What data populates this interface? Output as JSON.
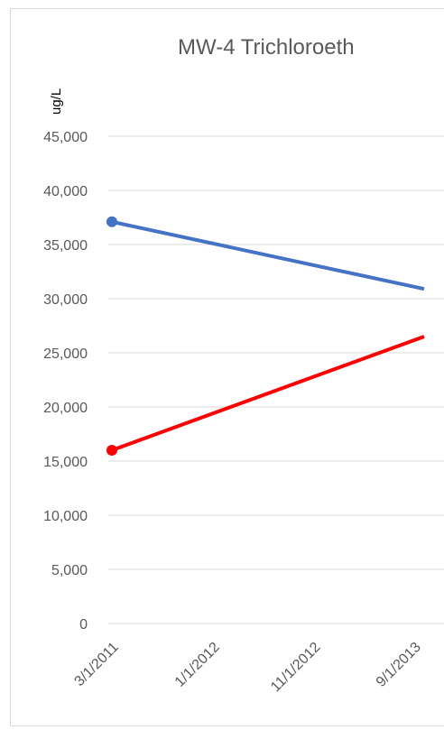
{
  "chart_data": {
    "type": "line",
    "title": "MW-4 Trichloroeth",
    "ylabel": "ug/L",
    "xlabel": "",
    "ylim": [
      0,
      45000
    ],
    "y_ticks": [
      "0",
      "5,000",
      "10,000",
      "15,000",
      "20,000",
      "25,000",
      "30,000",
      "35,000",
      "40,000",
      "45,000"
    ],
    "x_ticks": [
      "3/1/2011",
      "1/1/2012",
      "11/1/2012",
      "9/1/2013"
    ],
    "grid": true,
    "series": [
      {
        "color": "#4472c4",
        "points": [
          {
            "x": "3/1/2011",
            "y": 37100,
            "marker": true
          },
          {
            "x": "10/1/2013",
            "y": 30900,
            "marker": false
          }
        ]
      },
      {
        "color": "#ff0000",
        "points": [
          {
            "x": "3/1/2011",
            "y": 16000,
            "marker": true
          },
          {
            "x": "10/1/2013",
            "y": 26500,
            "marker": false
          }
        ]
      }
    ]
  }
}
